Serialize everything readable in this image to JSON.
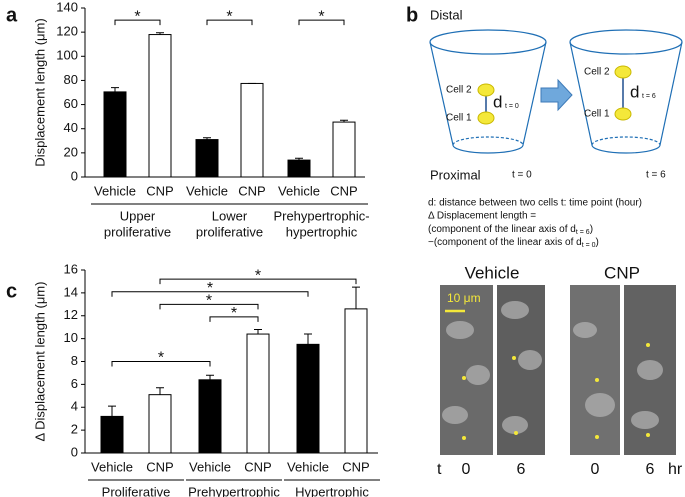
{
  "panels": [
    "a",
    "b",
    "c"
  ],
  "chart_data": [
    {
      "type": "bar",
      "ylabel": "Displacement length (μm)",
      "categories": [
        "Vehicle",
        "CNP",
        "Vehicle",
        "CNP",
        "Vehicle",
        "CNP"
      ],
      "groups": [
        [
          "Upper",
          "proliferative"
        ],
        [
          "Lower",
          "proliferative"
        ],
        [
          "Prehypertrophic-",
          "hypertrophic"
        ]
      ],
      "values": [
        70.5,
        118,
        31,
        77.5,
        14,
        45.5
      ],
      "errors": [
        3.5,
        1.5,
        1.5,
        0,
        1.5,
        1.5
      ],
      "colors": [
        "#000000",
        "#ffffff",
        "#000000",
        "#ffffff",
        "#000000",
        "#ffffff"
      ],
      "ylim": [
        0,
        140
      ],
      "yticks": [
        0,
        20,
        40,
        60,
        80,
        100,
        120,
        140
      ],
      "brackets": [
        {
          "from": 0,
          "to": 1,
          "label": "*",
          "level": 130
        },
        {
          "from": 2,
          "to": 3,
          "label": "*",
          "level": 130
        },
        {
          "from": 4,
          "to": 5,
          "label": "*",
          "level": 130
        }
      ]
    },
    {
      "type": "bar",
      "ylabel": "Δ Displacement length (μm)",
      "categories": [
        "Vehicle",
        "CNP",
        "Vehicle",
        "CNP",
        "Vehicle",
        "CNP"
      ],
      "groups": [
        [
          "Proliferative"
        ],
        [
          "Prehypertrophic"
        ],
        [
          "Hypertrophic"
        ]
      ],
      "values": [
        3.2,
        5.1,
        6.4,
        10.4,
        9.5,
        12.6
      ],
      "errors": [
        0.9,
        0.6,
        0.4,
        0.4,
        0.9,
        1.9
      ],
      "colors": [
        "#000000",
        "#ffffff",
        "#000000",
        "#ffffff",
        "#000000",
        "#ffffff"
      ],
      "ylim": [
        0,
        16
      ],
      "yticks": [
        0,
        2,
        4,
        6,
        8,
        10,
        12,
        14,
        16
      ],
      "brackets": [
        {
          "from": 0,
          "to": 2,
          "label": "*",
          "level": 8
        },
        {
          "from": 2,
          "to": 3,
          "label": "*",
          "level": 11.9
        },
        {
          "from": 1,
          "to": 3,
          "label": "*",
          "level": 13
        },
        {
          "from": 0,
          "to": 4,
          "label": "*",
          "level": 14.1
        },
        {
          "from": 1,
          "to": 5,
          "label": "*",
          "level": 15.2
        }
      ]
    }
  ],
  "diagram": {
    "distal": "Distal",
    "proximal": "Proximal",
    "cell2": "Cell 2",
    "cell1": "Cell 1",
    "d": "d",
    "t0_sub": "t = 0",
    "t6_sub": "t = 6",
    "t0": "t = 0",
    "t6": "t = 6",
    "caption": [
      "d: distance between two cells t: time point (hour)",
      "Δ Displacement length =",
      {
        "text": "(component of the linear axis of d",
        "sub": "t = 6",
        "tail": ")"
      },
      {
        "text": "−(component of the linear axis of d",
        "sub": "t = 0",
        "tail": ")"
      }
    ]
  },
  "images": {
    "labels": [
      "Vehicle",
      "CNP"
    ],
    "scale_bar": "10 μm",
    "time_axis": "t",
    "times": [
      "0",
      "6",
      "0",
      "6"
    ],
    "unit": "hr"
  }
}
